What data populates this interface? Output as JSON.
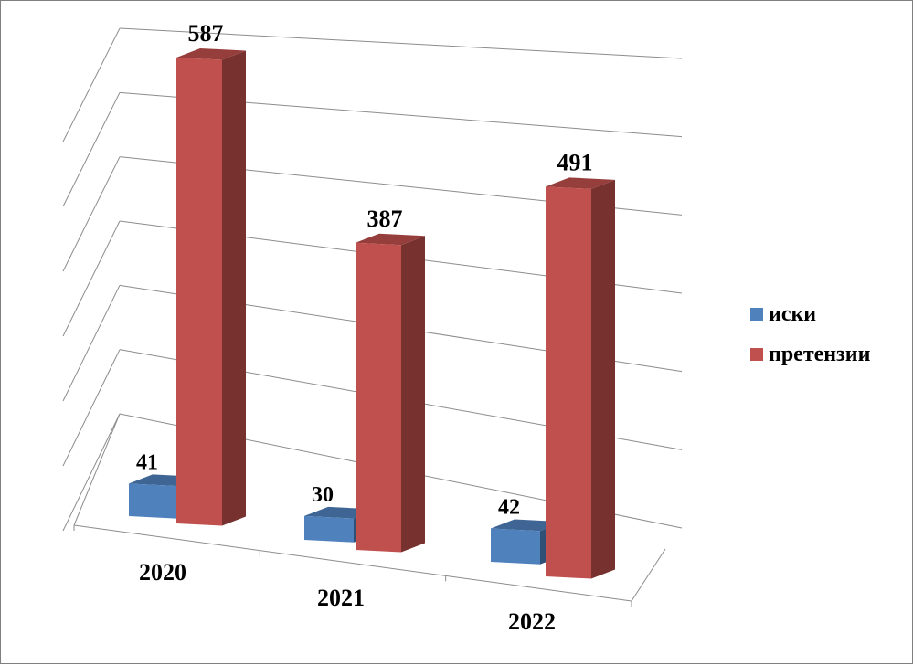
{
  "chart_data": {
    "type": "bar",
    "title": "",
    "xlabel": "",
    "ylabel": "",
    "categories": [
      "2020",
      "2021",
      "2022"
    ],
    "series": [
      {
        "name": "иски",
        "values": [
          41,
          30,
          42
        ],
        "color": "#4f81bd"
      },
      {
        "name": "претензии",
        "values": [
          587,
          387,
          491
        ],
        "color": "#c0504d"
      }
    ],
    "ylim": [
      0,
      600
    ],
    "grid": true,
    "legend": "right"
  }
}
